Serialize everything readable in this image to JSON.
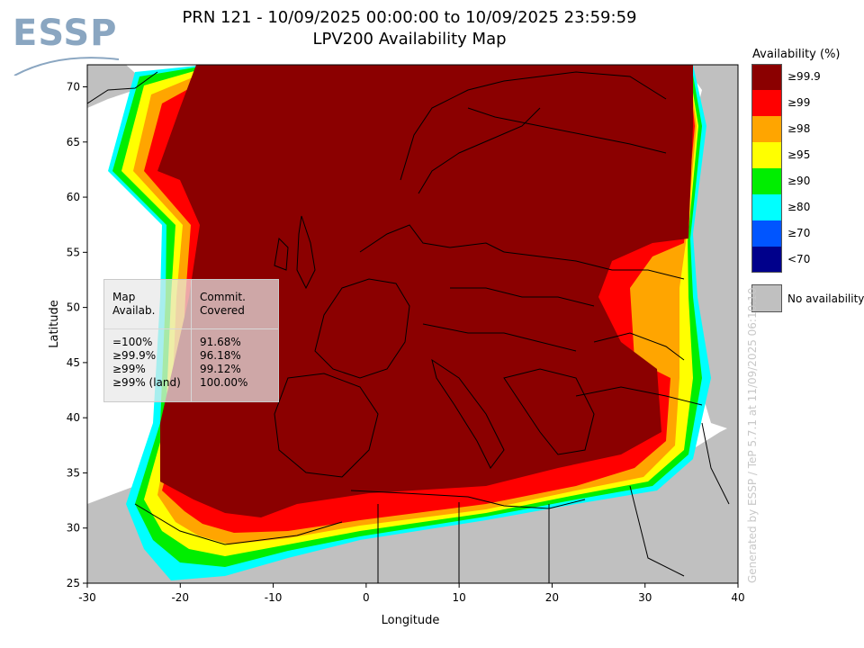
{
  "header": {
    "logo_text": "ESSP",
    "title_line1": "PRN 121 - 10/09/2025 00:00:00 to 10/09/2025 23:59:59",
    "title_line2": "LPV200 Availability Map"
  },
  "map": {
    "xlabel": "Longitude",
    "ylabel": "Latitude",
    "x_ticks": [
      "-30",
      "-20",
      "-10",
      "0",
      "10",
      "20",
      "30",
      "40"
    ],
    "y_ticks": [
      "25",
      "30",
      "35",
      "40",
      "45",
      "50",
      "55",
      "60",
      "65",
      "70"
    ],
    "xlim": [
      -30,
      40
    ],
    "ylim": [
      25,
      72
    ],
    "land_color": "#c0c0c0",
    "sea_color": "#ffffff"
  },
  "legend": {
    "title": "Availability (%)",
    "items": [
      {
        "label": "≥99.9",
        "color": "#8b0000"
      },
      {
        "label": "≥99",
        "color": "#ff0000"
      },
      {
        "label": "≥98",
        "color": "#ffa500"
      },
      {
        "label": "≥95",
        "color": "#ffff00"
      },
      {
        "label": "≥90",
        "color": "#00ee00"
      },
      {
        "label": "≥80",
        "color": "#00ffff"
      },
      {
        "label": "≥70",
        "color": "#0055ff"
      },
      {
        "label": "<70",
        "color": "#00008b"
      }
    ],
    "no_availability": {
      "label": "No availability",
      "color": "#c0c0c0"
    }
  },
  "stats": {
    "col1_header_line1": "Map",
    "col1_header_line2": "Availab.",
    "col2_header_line1": "Commit.",
    "col2_header_line2": "Covered",
    "rows": [
      {
        "map": "=100%",
        "covered": "91.68%"
      },
      {
        "map": "≥99.9%",
        "covered": "96.18%"
      },
      {
        "map": "≥99%",
        "covered": "99.12%"
      },
      {
        "map": "≥99% (land)",
        "covered": "100.00%"
      }
    ]
  },
  "watermark": "Generated by ESSP / TeP 5.7.1 at 11/09/2025 06:10:10"
}
